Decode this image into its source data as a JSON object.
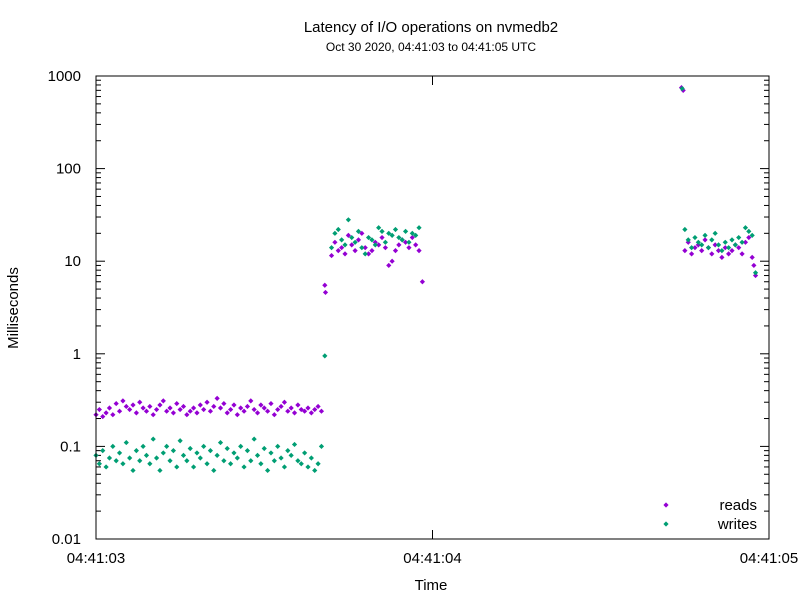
{
  "chart_data": {
    "type": "scatter",
    "title": "Latency of I/O operations on nvmedb2",
    "subtitle": "Oct 30 2020, 04:41:03 to 04:41:05 UTC",
    "xlabel": "Time",
    "ylabel": "Milliseconds",
    "x_scale": "time",
    "y_scale": "log",
    "xlim": [
      "04:41:03",
      "04:41:05"
    ],
    "ylim": [
      0.01,
      1000
    ],
    "x_ticks": [
      "04:41:03",
      "04:41:04",
      "04:41:05"
    ],
    "y_ticks": [
      "0.01",
      "0.1",
      "1",
      "10",
      "100",
      "1000"
    ],
    "grid": false,
    "legend_position": "bottom-right",
    "series": [
      {
        "name": "reads",
        "color": "#9400d3",
        "marker": "diamond",
        "points": [
          [
            "04:41:03.000",
            0.22
          ],
          [
            "04:41:03.010",
            0.25
          ],
          [
            "04:41:03.020",
            0.21
          ],
          [
            "04:41:03.030",
            0.23
          ],
          [
            "04:41:03.040",
            0.26
          ],
          [
            "04:41:03.050",
            0.22
          ],
          [
            "04:41:03.060",
            0.29
          ],
          [
            "04:41:03.070",
            0.24
          ],
          [
            "04:41:03.080",
            0.31
          ],
          [
            "04:41:03.090",
            0.27
          ],
          [
            "04:41:03.100",
            0.25
          ],
          [
            "04:41:03.110",
            0.28
          ],
          [
            "04:41:03.120",
            0.23
          ],
          [
            "04:41:03.130",
            0.3
          ],
          [
            "04:41:03.140",
            0.26
          ],
          [
            "04:41:03.150",
            0.24
          ],
          [
            "04:41:03.160",
            0.27
          ],
          [
            "04:41:03.170",
            0.22
          ],
          [
            "04:41:03.180",
            0.25
          ],
          [
            "04:41:03.190",
            0.28
          ],
          [
            "04:41:03.200",
            0.31
          ],
          [
            "04:41:03.210",
            0.24
          ],
          [
            "04:41:03.220",
            0.26
          ],
          [
            "04:41:03.230",
            0.23
          ],
          [
            "04:41:03.240",
            0.29
          ],
          [
            "04:41:03.250",
            0.25
          ],
          [
            "04:41:03.260",
            0.27
          ],
          [
            "04:41:03.270",
            0.22
          ],
          [
            "04:41:03.280",
            0.24
          ],
          [
            "04:41:03.290",
            0.26
          ],
          [
            "04:41:03.300",
            0.23
          ],
          [
            "04:41:03.310",
            0.28
          ],
          [
            "04:41:03.320",
            0.25
          ],
          [
            "04:41:03.330",
            0.3
          ],
          [
            "04:41:03.340",
            0.24
          ],
          [
            "04:41:03.350",
            0.27
          ],
          [
            "04:41:03.360",
            0.33
          ],
          [
            "04:41:03.370",
            0.26
          ],
          [
            "04:41:03.380",
            0.29
          ],
          [
            "04:41:03.390",
            0.23
          ],
          [
            "04:41:03.400",
            0.25
          ],
          [
            "04:41:03.410",
            0.28
          ],
          [
            "04:41:03.420",
            0.22
          ],
          [
            "04:41:03.430",
            0.26
          ],
          [
            "04:41:03.440",
            0.24
          ],
          [
            "04:41:03.450",
            0.27
          ],
          [
            "04:41:03.460",
            0.31
          ],
          [
            "04:41:03.470",
            0.25
          ],
          [
            "04:41:03.480",
            0.23
          ],
          [
            "04:41:03.490",
            0.28
          ],
          [
            "04:41:03.500",
            0.26
          ],
          [
            "04:41:03.510",
            0.24
          ],
          [
            "04:41:03.520",
            0.29
          ],
          [
            "04:41:03.530",
            0.22
          ],
          [
            "04:41:03.540",
            0.25
          ],
          [
            "04:41:03.550",
            0.27
          ],
          [
            "04:41:03.560",
            0.3
          ],
          [
            "04:41:03.570",
            0.24
          ],
          [
            "04:41:03.580",
            0.26
          ],
          [
            "04:41:03.590",
            0.23
          ],
          [
            "04:41:03.600",
            0.28
          ],
          [
            "04:41:03.610",
            0.25
          ],
          [
            "04:41:03.620",
            0.24
          ],
          [
            "04:41:03.630",
            0.26
          ],
          [
            "04:41:03.640",
            0.23
          ],
          [
            "04:41:03.650",
            0.25
          ],
          [
            "04:41:03.660",
            0.27
          ],
          [
            "04:41:03.670",
            0.24
          ],
          [
            "04:41:03.680",
            5.5
          ],
          [
            "04:41:03.682",
            4.6
          ],
          [
            "04:41:03.700",
            11.5
          ],
          [
            "04:41:03.710",
            16
          ],
          [
            "04:41:03.720",
            13
          ],
          [
            "04:41:03.730",
            14
          ],
          [
            "04:41:03.740",
            12
          ],
          [
            "04:41:03.750",
            19
          ],
          [
            "04:41:03.760",
            15
          ],
          [
            "04:41:03.770",
            13
          ],
          [
            "04:41:03.780",
            17
          ],
          [
            "04:41:03.790",
            20
          ],
          [
            "04:41:03.800",
            14
          ],
          [
            "04:41:03.810",
            12
          ],
          [
            "04:41:03.820",
            13
          ],
          [
            "04:41:03.830",
            16
          ],
          [
            "04:41:03.840",
            15
          ],
          [
            "04:41:03.850",
            18
          ],
          [
            "04:41:03.860",
            14
          ],
          [
            "04:41:03.870",
            9
          ],
          [
            "04:41:03.880",
            10
          ],
          [
            "04:41:03.890",
            13
          ],
          [
            "04:41:03.900",
            15
          ],
          [
            "04:41:03.910",
            17
          ],
          [
            "04:41:03.920",
            16
          ],
          [
            "04:41:03.930",
            14
          ],
          [
            "04:41:03.940",
            18
          ],
          [
            "04:41:03.950",
            15
          ],
          [
            "04:41:03.960",
            13
          ],
          [
            "04:41:03.970",
            6.0
          ],
          [
            "04:41:04.740",
            750
          ],
          [
            "04:41:04.745",
            700
          ],
          [
            "04:41:04.750",
            13
          ],
          [
            "04:41:04.760",
            16
          ],
          [
            "04:41:04.770",
            12
          ],
          [
            "04:41:04.780",
            14
          ],
          [
            "04:41:04.790",
            15
          ],
          [
            "04:41:04.800",
            13
          ],
          [
            "04:41:04.810",
            17
          ],
          [
            "04:41:04.820",
            14
          ],
          [
            "04:41:04.830",
            12
          ],
          [
            "04:41:04.840",
            15
          ],
          [
            "04:41:04.850",
            13
          ],
          [
            "04:41:04.860",
            11
          ],
          [
            "04:41:04.870",
            14
          ],
          [
            "04:41:04.880",
            12
          ],
          [
            "04:41:04.890",
            13
          ],
          [
            "04:41:04.900",
            15
          ],
          [
            "04:41:04.910",
            14
          ],
          [
            "04:41:04.920",
            12
          ],
          [
            "04:41:04.930",
            16
          ],
          [
            "04:41:04.940",
            18
          ],
          [
            "04:41:04.950",
            11
          ],
          [
            "04:41:04.955",
            9
          ],
          [
            "04:41:04.960",
            7.0
          ]
        ]
      },
      {
        "name": "writes",
        "color": "#009e73",
        "marker": "diamond",
        "points": [
          [
            "04:41:03.000",
            0.08
          ],
          [
            "04:41:03.010",
            0.065
          ],
          [
            "04:41:03.020",
            0.09
          ],
          [
            "04:41:03.030",
            0.06
          ],
          [
            "04:41:03.040",
            0.075
          ],
          [
            "04:41:03.050",
            0.1
          ],
          [
            "04:41:03.060",
            0.07
          ],
          [
            "04:41:03.070",
            0.085
          ],
          [
            "04:41:03.080",
            0.065
          ],
          [
            "04:41:03.090",
            0.11
          ],
          [
            "04:41:03.100",
            0.075
          ],
          [
            "04:41:03.110",
            0.055
          ],
          [
            "04:41:03.120",
            0.09
          ],
          [
            "04:41:03.130",
            0.07
          ],
          [
            "04:41:03.140",
            0.1
          ],
          [
            "04:41:03.150",
            0.08
          ],
          [
            "04:41:03.160",
            0.065
          ],
          [
            "04:41:03.170",
            0.12
          ],
          [
            "04:41:03.180",
            0.075
          ],
          [
            "04:41:03.190",
            0.055
          ],
          [
            "04:41:03.200",
            0.085
          ],
          [
            "04:41:03.210",
            0.1
          ],
          [
            "04:41:03.220",
            0.07
          ],
          [
            "04:41:03.230",
            0.09
          ],
          [
            "04:41:03.240",
            0.06
          ],
          [
            "04:41:03.250",
            0.115
          ],
          [
            "04:41:03.260",
            0.08
          ],
          [
            "04:41:03.270",
            0.07
          ],
          [
            "04:41:03.280",
            0.095
          ],
          [
            "04:41:03.290",
            0.06
          ],
          [
            "04:41:03.300",
            0.085
          ],
          [
            "04:41:03.310",
            0.075
          ],
          [
            "04:41:03.320",
            0.1
          ],
          [
            "04:41:03.330",
            0.065
          ],
          [
            "04:41:03.340",
            0.09
          ],
          [
            "04:41:03.350",
            0.055
          ],
          [
            "04:41:03.360",
            0.08
          ],
          [
            "04:41:03.370",
            0.11
          ],
          [
            "04:41:03.380",
            0.07
          ],
          [
            "04:41:03.390",
            0.095
          ],
          [
            "04:41:03.400",
            0.065
          ],
          [
            "04:41:03.410",
            0.085
          ],
          [
            "04:41:03.420",
            0.075
          ],
          [
            "04:41:03.430",
            0.1
          ],
          [
            "04:41:03.440",
            0.06
          ],
          [
            "04:41:03.450",
            0.09
          ],
          [
            "04:41:03.460",
            0.07
          ],
          [
            "04:41:03.470",
            0.12
          ],
          [
            "04:41:03.480",
            0.08
          ],
          [
            "04:41:03.490",
            0.065
          ],
          [
            "04:41:03.500",
            0.095
          ],
          [
            "04:41:03.510",
            0.055
          ],
          [
            "04:41:03.520",
            0.085
          ],
          [
            "04:41:03.530",
            0.07
          ],
          [
            "04:41:03.540",
            0.1
          ],
          [
            "04:41:03.550",
            0.075
          ],
          [
            "04:41:03.560",
            0.06
          ],
          [
            "04:41:03.570",
            0.09
          ],
          [
            "04:41:03.580",
            0.08
          ],
          [
            "04:41:03.590",
            0.105
          ],
          [
            "04:41:03.600",
            0.07
          ],
          [
            "04:41:03.610",
            0.065
          ],
          [
            "04:41:03.620",
            0.085
          ],
          [
            "04:41:03.630",
            0.06
          ],
          [
            "04:41:03.640",
            0.075
          ],
          [
            "04:41:03.650",
            0.055
          ],
          [
            "04:41:03.660",
            0.065
          ],
          [
            "04:41:03.670",
            0.1
          ],
          [
            "04:41:03.680",
            0.95
          ],
          [
            "04:41:03.700",
            14
          ],
          [
            "04:41:03.710",
            20
          ],
          [
            "04:41:03.720",
            22
          ],
          [
            "04:41:03.730",
            17
          ],
          [
            "04:41:03.740",
            15
          ],
          [
            "04:41:03.750",
            28
          ],
          [
            "04:41:03.760",
            18
          ],
          [
            "04:41:03.770",
            16
          ],
          [
            "04:41:03.780",
            21
          ],
          [
            "04:41:03.790",
            14
          ],
          [
            "04:41:03.800",
            12
          ],
          [
            "04:41:03.810",
            18
          ],
          [
            "04:41:03.820",
            17
          ],
          [
            "04:41:03.830",
            15
          ],
          [
            "04:41:03.840",
            23
          ],
          [
            "04:41:03.850",
            21
          ],
          [
            "04:41:03.860",
            16
          ],
          [
            "04:41:03.870",
            20
          ],
          [
            "04:41:03.880",
            19
          ],
          [
            "04:41:03.890",
            22
          ],
          [
            "04:41:03.900",
            18
          ],
          [
            "04:41:03.910",
            17
          ],
          [
            "04:41:03.920",
            21
          ],
          [
            "04:41:03.930",
            16
          ],
          [
            "04:41:03.940",
            20
          ],
          [
            "04:41:03.950",
            19
          ],
          [
            "04:41:03.960",
            23
          ],
          [
            "04:41:04.742",
            730
          ],
          [
            "04:41:04.750",
            22
          ],
          [
            "04:41:04.760",
            17
          ],
          [
            "04:41:04.770",
            14
          ],
          [
            "04:41:04.780",
            18
          ],
          [
            "04:41:04.790",
            16
          ],
          [
            "04:41:04.800",
            15
          ],
          [
            "04:41:04.810",
            19
          ],
          [
            "04:41:04.820",
            14
          ],
          [
            "04:41:04.830",
            17
          ],
          [
            "04:41:04.840",
            20
          ],
          [
            "04:41:04.850",
            15
          ],
          [
            "04:41:04.860",
            13
          ],
          [
            "04:41:04.870",
            16
          ],
          [
            "04:41:04.880",
            14
          ],
          [
            "04:41:04.890",
            17
          ],
          [
            "04:41:04.900",
            15
          ],
          [
            "04:41:04.910",
            18
          ],
          [
            "04:41:04.920",
            16
          ],
          [
            "04:41:04.930",
            23
          ],
          [
            "04:41:04.940",
            21
          ],
          [
            "04:41:04.950",
            19
          ],
          [
            "04:41:04.960",
            7.5
          ]
        ]
      }
    ]
  }
}
